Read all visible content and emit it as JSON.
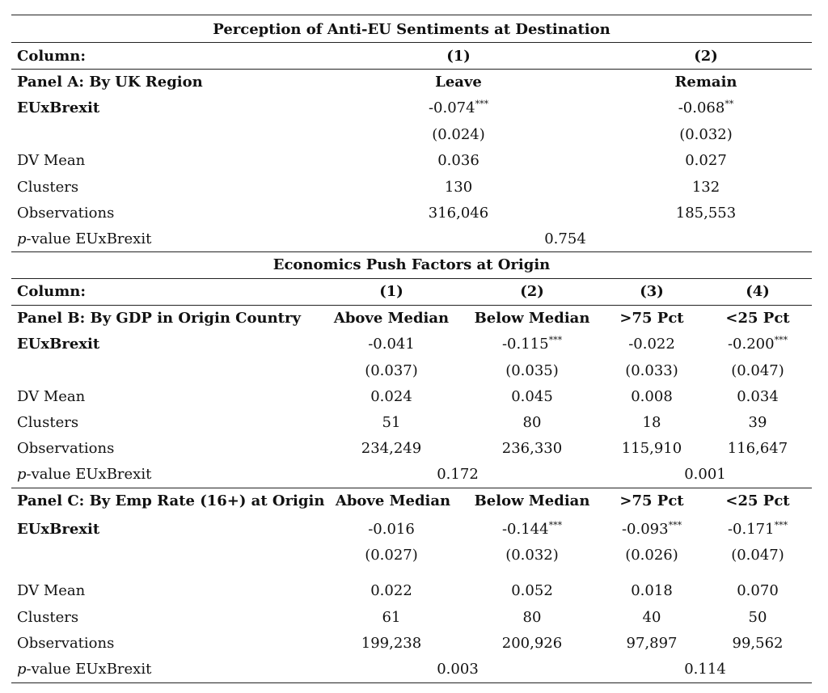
{
  "panelA": {
    "section_title": "Perception of Anti-EU Sentiments at Destination",
    "column_label": "Column:",
    "col_nums": [
      "(1)",
      "(2)"
    ],
    "panel_label": "Panel A: By UK Region",
    "col_heads": [
      "Leave",
      "Remain"
    ],
    "coef_label": "EUxBrexit",
    "coefs": [
      "-0.074",
      "-0.068"
    ],
    "stars": [
      "***",
      "**"
    ],
    "ses": [
      "(0.024)",
      "(0.032)"
    ],
    "dv_label": "DV Mean",
    "dv": [
      "0.036",
      "0.027"
    ],
    "clusters_label": "Clusters",
    "clusters": [
      "130",
      "132"
    ],
    "obs_label": "Observations",
    "obs": [
      "316,046",
      "185,553"
    ],
    "p_label_italic": "p",
    "p_label_rest": "-value EUxBrexit",
    "pvalue": "0.754"
  },
  "panelB": {
    "section_title": "Economics Push Factors at Origin",
    "column_label": "Column:",
    "col_nums": [
      "(1)",
      "(2)",
      "(3)",
      "(4)"
    ],
    "panel_label": "Panel B: By GDP in Origin Country",
    "col_heads": [
      "Above Median",
      "Below Median",
      ">75 Pct",
      "<25 Pct"
    ],
    "coef_label": "EUxBrexit",
    "coefs": [
      "-0.041",
      "-0.115",
      "-0.022",
      "-0.200"
    ],
    "stars": [
      "",
      "***",
      "",
      "***"
    ],
    "ses": [
      "(0.037)",
      "(0.035)",
      "(0.033)",
      "(0.047)"
    ],
    "dv_label": "DV Mean",
    "dv": [
      "0.024",
      "0.045",
      "0.008",
      "0.034"
    ],
    "clusters_label": "Clusters",
    "clusters": [
      "51",
      "80",
      "18",
      "39"
    ],
    "obs_label": "Observations",
    "obs": [
      "234,249",
      "236,330",
      "115,910",
      "116,647"
    ],
    "p_label_italic": "p",
    "p_label_rest": "-value EUxBrexit",
    "pvalues": [
      "0.172",
      "0.001"
    ]
  },
  "panelC": {
    "panel_label": "Panel C: By Emp Rate (16+) at Origin",
    "col_heads": [
      "Above Median",
      "Below Median",
      ">75 Pct",
      "<25 Pct"
    ],
    "coef_label": "EUxBrexit",
    "coefs": [
      "-0.016",
      "-0.144",
      "-0.093",
      "-0.171"
    ],
    "stars": [
      "",
      "***",
      "***",
      "***"
    ],
    "ses": [
      "(0.027)",
      "(0.032)",
      "(0.026)",
      "(0.047)"
    ],
    "dv_label": "DV Mean",
    "dv": [
      "0.022",
      "0.052",
      "0.018",
      "0.070"
    ],
    "clusters_label": "Clusters",
    "clusters": [
      "61",
      "80",
      "40",
      "50"
    ],
    "obs_label": "Observations",
    "obs": [
      "199,238",
      "200,926",
      "97,897",
      "99,562"
    ],
    "p_label_italic": "p",
    "p_label_rest": "-value EUxBrexit",
    "pvalues": [
      "0.003",
      "0.114"
    ]
  }
}
